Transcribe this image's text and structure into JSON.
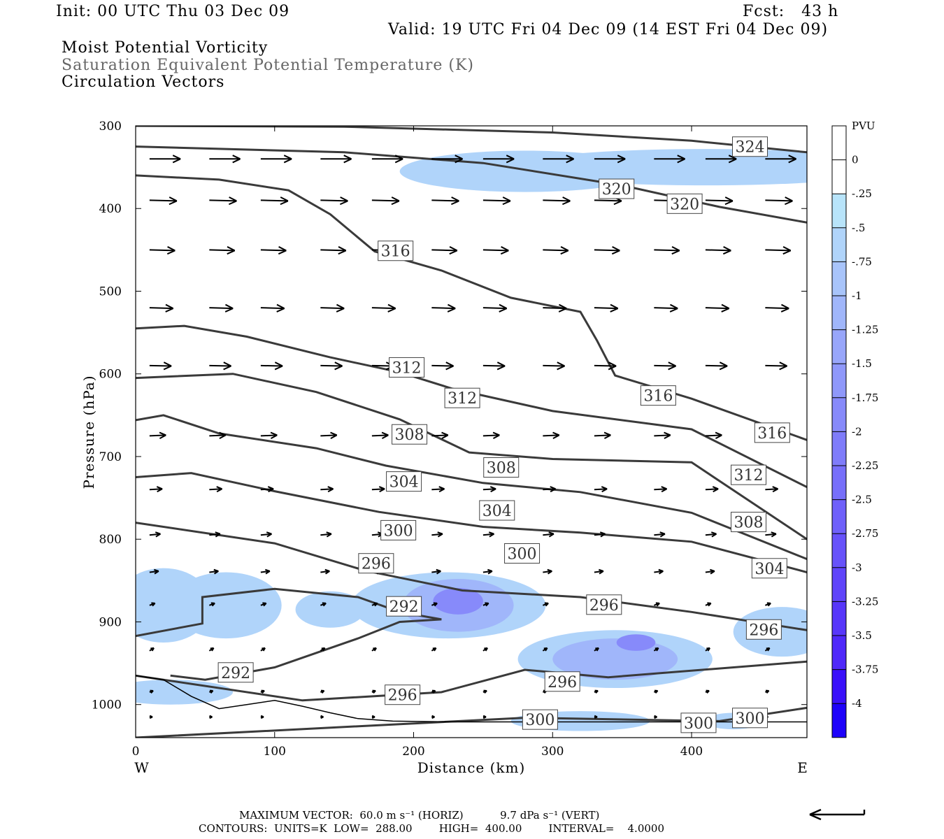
{
  "header": {
    "init": "Init: 00 UTC Thu 03 Dec 09",
    "fcst": "Fcst:   43 h",
    "valid": "Valid: 19 UTC Fri 04 Dec 09 (14 EST Fri 04 Dec 09)",
    "field1": "Moist Potential Vorticity",
    "field2": "Saturation Equivalent Potential Temperature (K)",
    "field3": "Circulation Vectors"
  },
  "footer": {
    "max_vector": "MAXIMUM VECTOR:  60.0 m s⁻¹ (HORIZ)           9.7 dPa s⁻¹ (VERT)",
    "contours": "CONTOURS:  UNITS=K  LOW=  288.00        HIGH=  400.00        INTERVAL=    4.0000"
  },
  "colors": {
    "contour": "#3a3a3a",
    "pv_scale": [
      "#ffffff",
      "#ffffff",
      "#b8e4fa",
      "#b0d4fa",
      "#a8c4fa",
      "#a0b6fa",
      "#98a6fa",
      "#8f98fa",
      "#878afa",
      "#7f7cfa",
      "#776ffa",
      "#6f60fa",
      "#6752fa",
      "#5f44fa",
      "#5736fa",
      "#4f28fa",
      "#3a10fa",
      "#1e02fa"
    ]
  },
  "chart_data": {
    "type": "cross-section",
    "xlabel": "Distance (km)",
    "ylabel": "Pressure (hPa)",
    "xlim": [
      0,
      483
    ],
    "ylim": [
      300,
      1040
    ],
    "x_ticks": [
      0,
      100,
      200,
      300,
      400
    ],
    "x_tick_labels": [
      "0",
      "100",
      "200",
      "300",
      "400"
    ],
    "y_ticks": [
      300,
      400,
      500,
      600,
      700,
      800,
      900,
      1000
    ],
    "y_tick_labels": [
      "300",
      "400",
      "500",
      "600",
      "700",
      "800",
      "900",
      "1000"
    ],
    "x_end_labels": {
      "left": "W",
      "right": "E"
    },
    "colorbar": {
      "title": "PVU",
      "boundaries": [
        0,
        -0.25,
        -0.5,
        -0.75,
        -1,
        -1.25,
        -1.5,
        -1.75,
        -2,
        -2.25,
        -2.5,
        -2.75,
        -3,
        -3.25,
        -3.5,
        -3.75,
        -4
      ],
      "labels": [
        "0",
        "-.25",
        "-.5",
        "-.75",
        "-1",
        "-1.25",
        "-1.5",
        "-1.75",
        "-2",
        "-2.25",
        "-2.5",
        "-2.75",
        "-3",
        "-3.25",
        "-3.5",
        "-3.75",
        "-4"
      ]
    },
    "theta_es_contours": [
      {
        "value": 324,
        "points": [
          [
            0,
            300
          ],
          [
            150,
            301
          ],
          [
            300,
            308
          ],
          [
            400,
            318
          ],
          [
            483,
            332
          ]
        ]
      },
      {
        "value": 320,
        "points": [
          [
            0,
            325
          ],
          [
            150,
            332
          ],
          [
            250,
            345
          ],
          [
            350,
            372
          ],
          [
            420,
            398
          ],
          [
            483,
            417
          ]
        ]
      },
      {
        "value": 316,
        "points": [
          [
            0,
            360
          ],
          [
            60,
            365
          ],
          [
            110,
            378
          ],
          [
            140,
            407
          ],
          [
            172,
            452
          ],
          [
            220,
            475
          ],
          [
            270,
            508
          ],
          [
            320,
            525
          ],
          [
            332,
            560
          ],
          [
            345,
            602
          ],
          [
            400,
            630
          ],
          [
            483,
            680
          ]
        ]
      },
      {
        "value": 312,
        "points": [
          [
            0,
            545
          ],
          [
            35,
            542
          ],
          [
            80,
            555
          ],
          [
            140,
            580
          ],
          [
            190,
            598
          ],
          [
            228,
            618
          ],
          [
            300,
            645
          ],
          [
            400,
            667
          ],
          [
            483,
            737
          ]
        ]
      },
      {
        "value": 308,
        "points": [
          [
            0,
            605
          ],
          [
            70,
            600
          ],
          [
            130,
            622
          ],
          [
            190,
            655
          ],
          [
            240,
            695
          ],
          [
            300,
            703
          ],
          [
            400,
            707
          ],
          [
            483,
            800
          ]
        ]
      },
      {
        "value": 304,
        "points": [
          [
            0,
            656
          ],
          [
            20,
            650
          ],
          [
            60,
            672
          ],
          [
            130,
            690
          ],
          [
            180,
            711
          ],
          [
            250,
            732
          ],
          [
            320,
            743
          ],
          [
            400,
            768
          ],
          [
            483,
            824
          ]
        ]
      },
      {
        "value": 300,
        "points": [
          [
            0,
            725
          ],
          [
            40,
            720
          ],
          [
            100,
            742
          ],
          [
            175,
            767
          ],
          [
            250,
            785
          ],
          [
            320,
            792
          ],
          [
            400,
            803
          ],
          [
            483,
            840
          ]
        ]
      },
      {
        "value": 296,
        "points": [
          [
            0,
            780
          ],
          [
            100,
            805
          ],
          [
            165,
            838
          ],
          [
            235,
            862
          ],
          [
            320,
            870
          ],
          [
            400,
            888
          ],
          [
            483,
            910
          ]
        ]
      },
      {
        "value": 292,
        "points": [
          [
            0,
            917
          ],
          [
            48,
            902
          ],
          [
            48,
            870
          ],
          [
            100,
            860
          ],
          [
            160,
            870
          ],
          [
            190,
            888
          ],
          [
            220,
            897
          ],
          [
            190,
            900
          ],
          [
            160,
            920
          ],
          [
            100,
            955
          ],
          [
            50,
            970
          ],
          [
            25,
            965
          ]
        ]
      },
      {
        "value": 296,
        "points": [
          [
            0,
            965
          ],
          [
            120,
            995
          ],
          [
            220,
            985
          ],
          [
            280,
            958
          ],
          [
            340,
            967
          ],
          [
            483,
            948
          ]
        ]
      },
      {
        "value": 300,
        "points": [
          [
            0,
            1040
          ],
          [
            280,
            1016
          ],
          [
            420,
            1020
          ],
          [
            483,
            1004
          ]
        ]
      }
    ],
    "contour_labels": [
      {
        "value": 324,
        "x": 442,
        "y": 326
      },
      {
        "value": 320,
        "x": 346,
        "y": 377
      },
      {
        "value": 320,
        "x": 395,
        "y": 395
      },
      {
        "value": 316,
        "x": 187,
        "y": 452
      },
      {
        "value": 312,
        "x": 195,
        "y": 593
      },
      {
        "value": 312,
        "x": 235,
        "y": 630
      },
      {
        "value": 316,
        "x": 376,
        "y": 627
      },
      {
        "value": 316,
        "x": 458,
        "y": 672
      },
      {
        "value": 308,
        "x": 197,
        "y": 674
      },
      {
        "value": 308,
        "x": 263,
        "y": 714
      },
      {
        "value": 312,
        "x": 441,
        "y": 723
      },
      {
        "value": 304,
        "x": 193,
        "y": 731
      },
      {
        "value": 304,
        "x": 260,
        "y": 766
      },
      {
        "value": 308,
        "x": 441,
        "y": 780
      },
      {
        "value": 300,
        "x": 189,
        "y": 790
      },
      {
        "value": 300,
        "x": 278,
        "y": 818
      },
      {
        "value": 304,
        "x": 456,
        "y": 836
      },
      {
        "value": 296,
        "x": 173,
        "y": 830
      },
      {
        "value": 296,
        "x": 337,
        "y": 880
      },
      {
        "value": 292,
        "x": 193,
        "y": 882
      },
      {
        "value": 296,
        "x": 452,
        "y": 910
      },
      {
        "value": 292,
        "x": 72,
        "y": 962
      },
      {
        "value": 296,
        "x": 192,
        "y": 989
      },
      {
        "value": 296,
        "x": 307,
        "y": 973
      },
      {
        "value": 300,
        "x": 291,
        "y": 1019
      },
      {
        "value": 300,
        "x": 405,
        "y": 1023
      },
      {
        "value": 300,
        "x": 442,
        "y": 1017
      }
    ],
    "pv_regions": [
      {
        "pvu": -0.3,
        "cx": 410,
        "cy": 350,
        "rx": 140,
        "ry": 22
      },
      {
        "pvu": -0.3,
        "cx": 280,
        "cy": 355,
        "rx": 90,
        "ry": 25
      },
      {
        "pvu": -0.3,
        "cx": 20,
        "cy": 880,
        "rx": 35,
        "ry": 45
      },
      {
        "pvu": -0.3,
        "cx": 65,
        "cy": 880,
        "rx": 40,
        "ry": 40
      },
      {
        "pvu": -0.3,
        "cx": 140,
        "cy": 885,
        "rx": 25,
        "ry": 22
      },
      {
        "pvu": -0.3,
        "cx": 225,
        "cy": 880,
        "rx": 70,
        "ry": 40
      },
      {
        "pvu": -0.9,
        "cx": 232,
        "cy": 880,
        "rx": 40,
        "ry": 32
      },
      {
        "pvu": -1.6,
        "cx": 232,
        "cy": 875,
        "rx": 18,
        "ry": 16
      },
      {
        "pvu": -0.3,
        "cx": 345,
        "cy": 945,
        "rx": 70,
        "ry": 35
      },
      {
        "pvu": -0.9,
        "cx": 345,
        "cy": 945,
        "rx": 45,
        "ry": 25
      },
      {
        "pvu": -1.6,
        "cx": 360,
        "cy": 925,
        "rx": 14,
        "ry": 10
      },
      {
        "pvu": -0.3,
        "cx": 465,
        "cy": 912,
        "rx": 35,
        "ry": 30
      },
      {
        "pvu": -0.3,
        "cx": 25,
        "cy": 985,
        "rx": 45,
        "ry": 15
      },
      {
        "pvu": -0.3,
        "cx": 320,
        "cy": 1020,
        "rx": 50,
        "ry": 12
      },
      {
        "pvu": -0.3,
        "cx": 430,
        "cy": 1020,
        "rx": 20,
        "ry": 10
      }
    ],
    "terrain": [
      [
        0,
        965
      ],
      [
        20,
        970
      ],
      [
        40,
        990
      ],
      [
        60,
        1005
      ],
      [
        80,
        1000
      ],
      [
        100,
        995
      ],
      [
        120,
        1002
      ],
      [
        140,
        1010
      ],
      [
        160,
        1017
      ],
      [
        185,
        1020
      ],
      [
        230,
        1021
      ],
      [
        300,
        1021
      ],
      [
        483,
        1021
      ]
    ],
    "vector_levels": [
      {
        "p": 340,
        "u": 0.85,
        "w": 0.0
      },
      {
        "p": 390,
        "u": 0.75,
        "w": -0.05
      },
      {
        "p": 450,
        "u": 0.7,
        "w": -0.05
      },
      {
        "p": 520,
        "u": 0.65,
        "w": -0.05
      },
      {
        "p": 590,
        "u": 0.6,
        "w": -0.03
      },
      {
        "p": 675,
        "u": 0.45,
        "w": 0.05
      },
      {
        "p": 740,
        "u": 0.35,
        "w": 0.05
      },
      {
        "p": 795,
        "u": 0.3,
        "w": 0.08
      },
      {
        "p": 840,
        "u": 0.25,
        "w": 0.08
      },
      {
        "p": 880,
        "u": 0.15,
        "w": 0.15
      },
      {
        "p": 935,
        "u": 0.12,
        "w": 0.2
      },
      {
        "p": 985,
        "u": 0.1,
        "w": 0.1
      },
      {
        "p": 1015,
        "u": 0.08,
        "w": 0.0
      }
    ]
  }
}
